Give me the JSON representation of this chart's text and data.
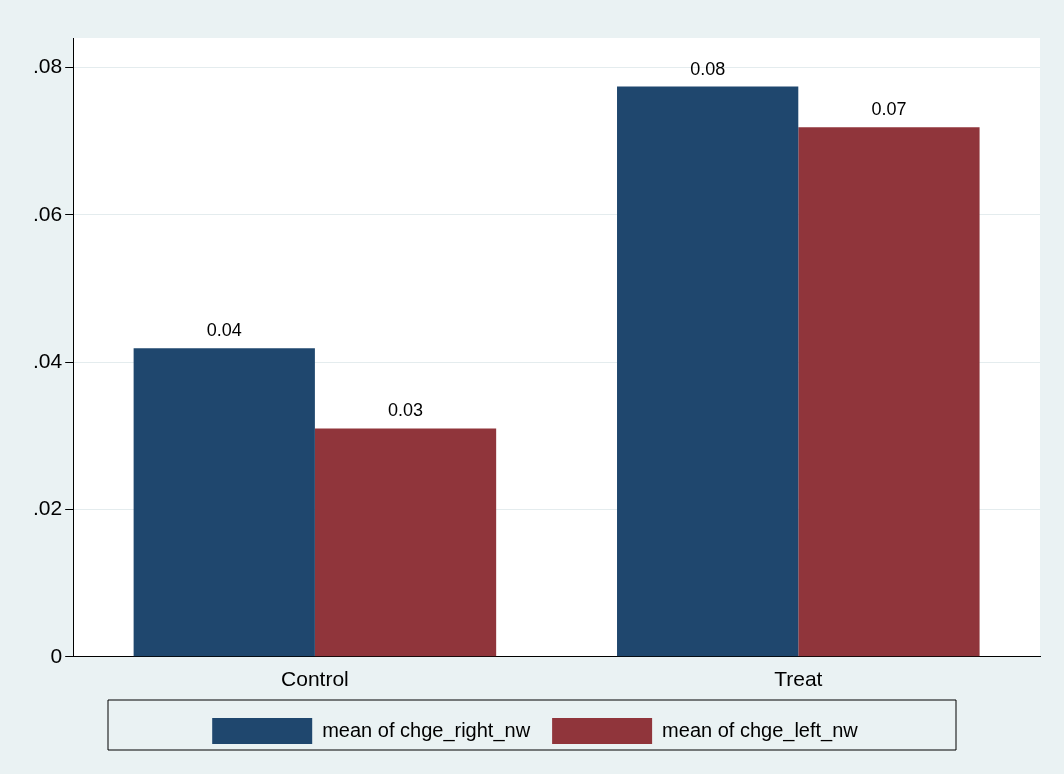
{
  "chart_data": {
    "type": "bar",
    "categories": [
      "Control",
      "Treat"
    ],
    "series": [
      {
        "name": "mean of chge_right_nw",
        "color": "#1f476e",
        "values": [
          0.0419,
          0.0774
        ],
        "value_labels": [
          "0.04",
          "0.08"
        ]
      },
      {
        "name": "mean of chge_left_nw",
        "color": "#90353b",
        "values": [
          0.031,
          0.0719
        ],
        "value_labels": [
          "0.03",
          "0.07"
        ]
      }
    ],
    "ylim": [
      0,
      0.084
    ],
    "yticks": [
      {
        "value": 0,
        "label": "0"
      },
      {
        "value": 0.02,
        "label": ".02"
      },
      {
        "value": 0.04,
        "label": ".04"
      },
      {
        "value": 0.06,
        "label": ".06"
      },
      {
        "value": 0.08,
        "label": ".08"
      }
    ],
    "grid": "y",
    "legend": "bottom"
  }
}
